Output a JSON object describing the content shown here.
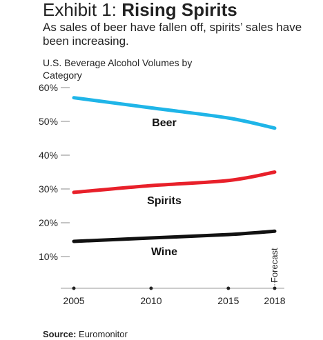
{
  "header": {
    "title_prefix": "Exhibit 1:",
    "title_bold": "Rising Spirits",
    "subtitle": "As sales of beer have fallen off, spirits’ sales have been increasing."
  },
  "chart_data": {
    "type": "line",
    "title": "U.S. Beverage Alcohol Volumes by Category",
    "x": [
      2005,
      2010,
      2015,
      2018
    ],
    "x_tick_labels": [
      "2005",
      "2010",
      "2015",
      "2018"
    ],
    "xlim": [
      2005,
      2018
    ],
    "ylim": [
      0,
      60
    ],
    "y_ticks": [
      10,
      20,
      30,
      40,
      50,
      60
    ],
    "y_tick_labels": [
      "10%",
      "20%",
      "30%",
      "40%",
      "50%",
      "60%"
    ],
    "y_unit": "%",
    "grid": false,
    "legend": "inline labels",
    "annotation": "Forecast",
    "annotation_x": 2018,
    "series": [
      {
        "name": "Beer",
        "color": "#1fb5e8",
        "values": [
          57,
          54,
          51,
          48
        ]
      },
      {
        "name": "Spirits",
        "color": "#e8202a",
        "values": [
          29,
          31,
          32.5,
          35
        ]
      },
      {
        "name": "Wine",
        "color": "#111111",
        "values": [
          14.5,
          15.5,
          16.5,
          17.5
        ]
      }
    ]
  },
  "footer": {
    "source_label": "Source:",
    "source_value": "Euromonitor"
  }
}
